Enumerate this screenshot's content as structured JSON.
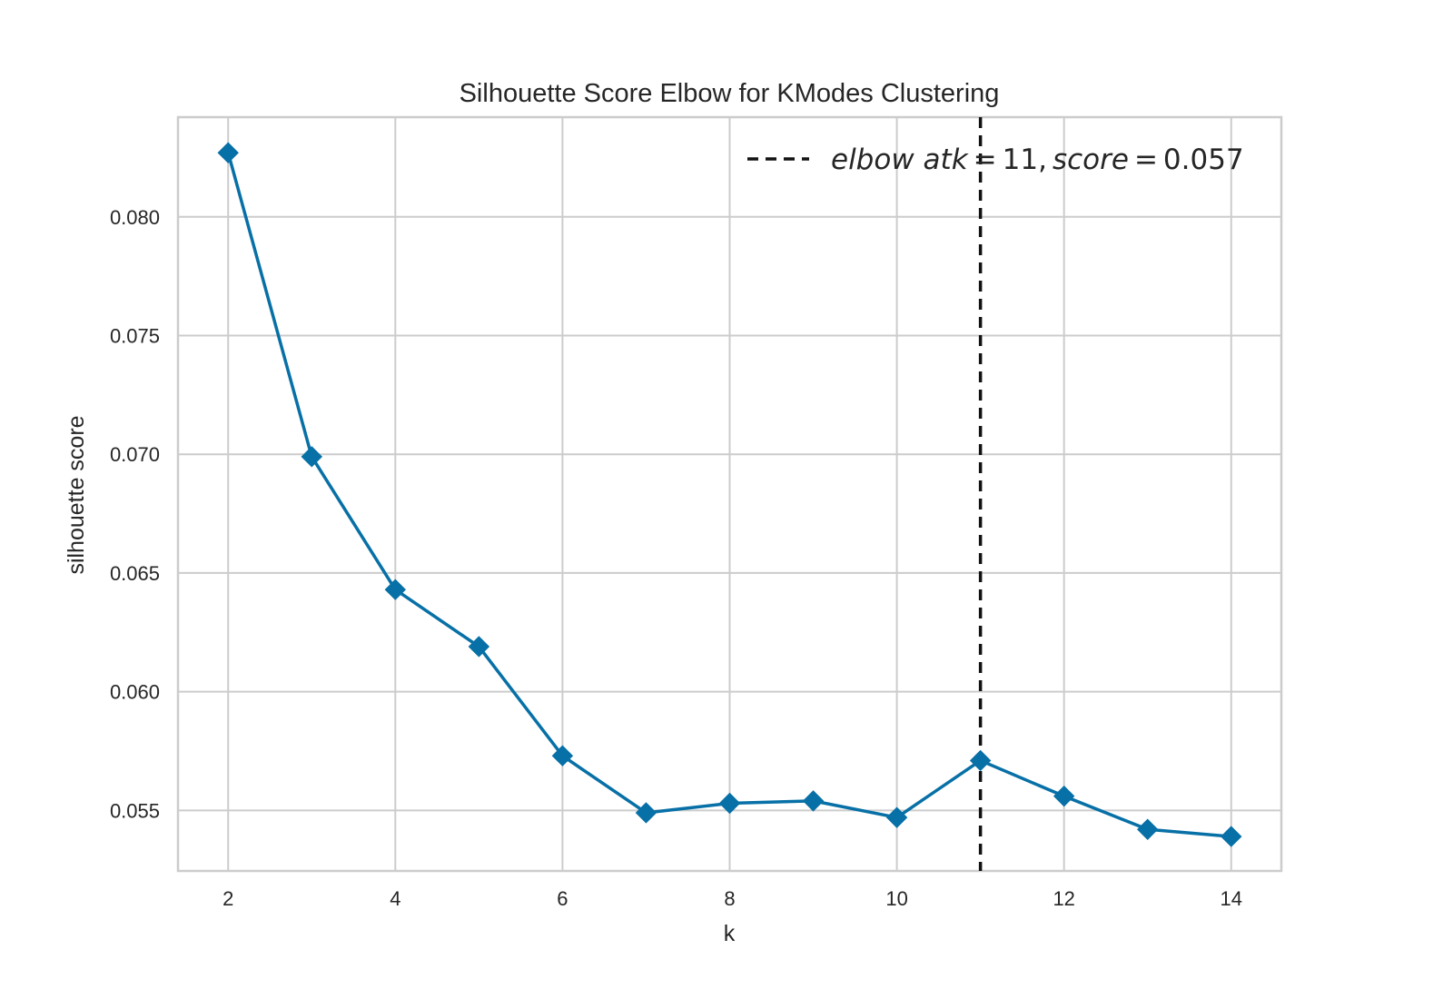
{
  "chart_data": {
    "type": "line",
    "title": "Silhouette Score Elbow for KModes Clustering",
    "xlabel": "k",
    "ylabel": "silhouette score",
    "x": [
      2,
      3,
      4,
      5,
      6,
      7,
      8,
      9,
      10,
      11,
      12,
      13,
      14
    ],
    "series": [
      {
        "values": [
          0.0827,
          0.0699,
          0.0643,
          0.0619,
          0.0573,
          0.0549,
          0.0553,
          0.0554,
          0.0547,
          0.0571,
          0.0556,
          0.0542,
          0.0539
        ],
        "color": "#0770a6",
        "marker": "diamond"
      }
    ],
    "xlim": [
      1.4,
      14.6
    ],
    "ylim": [
      0.05245,
      0.0842
    ],
    "xticks": [
      2,
      4,
      6,
      8,
      10,
      12,
      14
    ],
    "xtick_labels": [
      "2",
      "4",
      "6",
      "8",
      "10",
      "12",
      "14"
    ],
    "yticks": [
      0.055,
      0.06,
      0.065,
      0.07,
      0.075,
      0.08
    ],
    "ytick_labels": [
      "0.055",
      "0.060",
      "0.065",
      "0.070",
      "0.075",
      "0.080"
    ],
    "grid": true,
    "elbow": {
      "k": 11,
      "score": 0.057,
      "line_style": "dashed",
      "color": "#111111",
      "legend_label": "elbow at k = 11, score = 0.057",
      "legend_parts": [
        "elbow at",
        "k",
        "=",
        "11,",
        "score",
        "=",
        "0.057"
      ],
      "legend_position": "top-right"
    }
  }
}
